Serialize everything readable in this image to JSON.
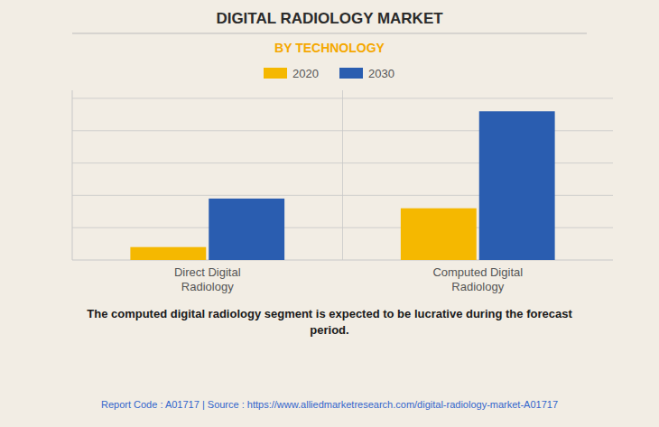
{
  "chart_data": {
    "type": "bar",
    "title": "DIGITAL RADIOLOGY MARKET",
    "subtitle": "BY TECHNOLOGY",
    "categories": [
      "Direct Digital\nRadiology",
      "Computed Digital\nRadiology"
    ],
    "series": [
      {
        "name": "2020",
        "color": "#F5B800",
        "values": [
          0.08,
          0.32
        ]
      },
      {
        "name": "2030",
        "color": "#2A5DB0",
        "values": [
          0.38,
          0.92
        ]
      }
    ],
    "ylim": [
      0,
      1.05
    ],
    "yticks": [
      0.2,
      0.4,
      0.6,
      0.8,
      1.0
    ],
    "grid": true,
    "legend": "top",
    "tick_labels": "x",
    "annotations": [
      "The computed digital radiology segment is expected to be lucrative during the forecast\nperiod.",
      "Report Code : A01717  |  Source : https://www.alliedmarketresearch.com/digital-radiology-market-A01717"
    ]
  }
}
